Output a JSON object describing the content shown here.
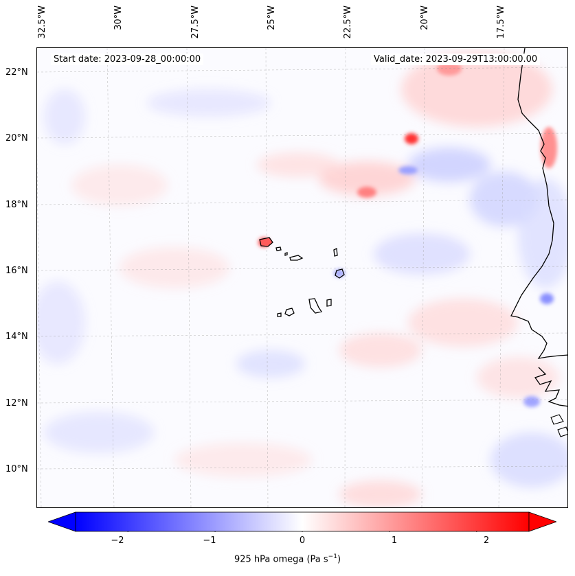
{
  "map": {
    "start_date": "Start date: 2023-09-28_00:00:00",
    "valid_date": "Valid_date: 2023-09-29T13:00:00.00",
    "lon_labels": [
      "32.5°W",
      "30°W",
      "27.5°W",
      "25°W",
      "22.5°W",
      "20°W",
      "17.5°W"
    ],
    "lat_labels": [
      "22°N",
      "20°N",
      "18°N",
      "16°N",
      "14°N",
      "12°N",
      "10°N"
    ],
    "islands": [
      "Santo Antão",
      "São Vicente",
      "Santa Luzia",
      "São Nicolau",
      "Sal",
      "Boa Vista",
      "Maio",
      "Santiago",
      "Fogo",
      "Brava"
    ]
  },
  "colorbar": {
    "label": "925 hPa omega (Pa s",
    "label_sup": "−1",
    "label_close": ")",
    "ticks": [
      "−2",
      "−1",
      "0",
      "1",
      "2"
    ],
    "tick_values": [
      -2,
      -1,
      0,
      1,
      2
    ],
    "range": [
      -2.6,
      2.6
    ],
    "colors": {
      "negative": "#0000ff",
      "zero": "#ffffff",
      "positive": "#ff0000"
    }
  }
}
